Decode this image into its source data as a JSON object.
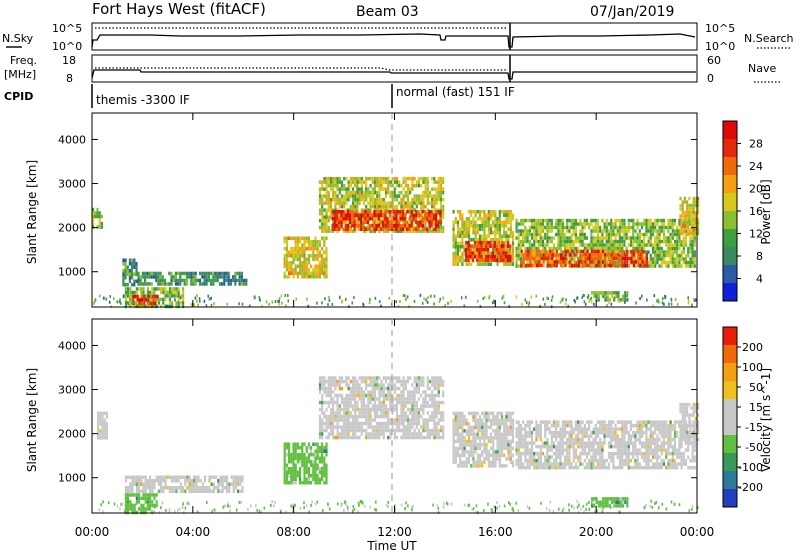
{
  "header": {
    "station": "Fort Hays West (fitACF)",
    "beam": "Beam 03",
    "date": "07/Jan/2019"
  },
  "noise_panel": {
    "left_label": "N.Sky",
    "right_label": "N.Search",
    "left_ticks": [
      "10^5",
      "10^0"
    ],
    "right_ticks": [
      "10^5",
      "10^0"
    ]
  },
  "freq_panel": {
    "left_label_1": "Freq.",
    "left_label_2": "[MHz]",
    "right_label": "Nave",
    "left_ticks": [
      "18",
      "8"
    ],
    "right_ticks": [
      "60",
      "0"
    ]
  },
  "cpid": {
    "label": "CPID",
    "segments": [
      {
        "start_hour": 0.0,
        "text": "themis -3300 IF"
      },
      {
        "start_hour": 12.0,
        "text": "normal (fast) 151 IF"
      }
    ]
  },
  "time_axis": {
    "label": "Time UT",
    "ticks": [
      {
        "hour": 0,
        "label": "00:00"
      },
      {
        "hour": 4,
        "label": "04:00"
      },
      {
        "hour": 8,
        "label": "08:00"
      },
      {
        "hour": 12,
        "label": "12:00"
      },
      {
        "hour": 16,
        "label": "16:00"
      },
      {
        "hour": 20,
        "label": "20:00"
      },
      {
        "hour": 24,
        "label": "00:00"
      }
    ]
  },
  "chart_data": [
    {
      "type": "heatmap",
      "name": "power",
      "ylabel": "Slant Range [km]",
      "ylim": [
        200,
        4600
      ],
      "yticks": [
        1000,
        2000,
        3000,
        4000
      ],
      "xlim": [
        0,
        24
      ],
      "colorbar": {
        "label": "Power [dB]",
        "min": 0,
        "max": 32,
        "ticks": [
          {
            "value": 4,
            "label": "4"
          },
          {
            "value": 8,
            "label": "8"
          },
          {
            "value": 12,
            "label": "12"
          },
          {
            "value": 16,
            "label": "16"
          },
          {
            "value": 20,
            "label": "20"
          },
          {
            "value": 24,
            "label": "24"
          },
          {
            "value": 28,
            "label": "28"
          }
        ],
        "colors": [
          "#1020d8",
          "#2a5aa8",
          "#3a8a60",
          "#3ca03c",
          "#8ac030",
          "#d8c818",
          "#f5a010",
          "#f06a08",
          "#e82808",
          "#e00808"
        ]
      },
      "regions": [
        {
          "t0": 0.0,
          "t1": 0.4,
          "r0": 2050,
          "r1": 2450,
          "value": 14
        },
        {
          "t0": 1.3,
          "t1": 3.6,
          "r0": 250,
          "r1": 650,
          "value": 14
        },
        {
          "t0": 1.6,
          "t1": 2.6,
          "r0": 260,
          "r1": 480,
          "value": 29
        },
        {
          "t0": 1.2,
          "t1": 1.8,
          "r0": 700,
          "r1": 1300,
          "value": 10
        },
        {
          "t0": 1.8,
          "t1": 6.1,
          "r0": 700,
          "r1": 1000,
          "value": 9
        },
        {
          "t0": 7.6,
          "t1": 9.3,
          "r0": 900,
          "r1": 1800,
          "value": 18
        },
        {
          "t0": 9.0,
          "t1": 13.9,
          "r0": 1900,
          "r1": 3150,
          "value": 16
        },
        {
          "t0": 9.5,
          "t1": 13.8,
          "r0": 2000,
          "r1": 2400,
          "value": 27
        },
        {
          "t0": 14.3,
          "t1": 16.7,
          "r0": 1200,
          "r1": 2400,
          "value": 16
        },
        {
          "t0": 14.8,
          "t1": 16.6,
          "r0": 1250,
          "r1": 1700,
          "value": 27
        },
        {
          "t0": 16.8,
          "t1": 23.9,
          "r0": 1150,
          "r1": 2200,
          "value": 14
        },
        {
          "t0": 17.0,
          "t1": 22.0,
          "r0": 1150,
          "r1": 1500,
          "value": 26
        },
        {
          "t0": 23.3,
          "t1": 24.0,
          "r0": 1900,
          "r1": 2700,
          "value": 18
        },
        {
          "t0": 19.8,
          "t1": 21.2,
          "r0": 350,
          "r1": 560,
          "value": 12
        }
      ]
    },
    {
      "type": "heatmap",
      "name": "velocity",
      "ylabel": "Slant Range [km]",
      "ylim": [
        200,
        4600
      ],
      "yticks": [
        1000,
        2000,
        3000,
        4000
      ],
      "xlim": [
        0,
        24
      ],
      "colorbar": {
        "label": "Velocity [m s^-1]",
        "min": -250,
        "max": 250,
        "ticks": [
          {
            "label": "200"
          },
          {
            "label": "100"
          },
          {
            "label": "50"
          },
          {
            "label": "15"
          },
          {
            "label": "-15"
          },
          {
            "label": "-50"
          },
          {
            "label": "-100"
          },
          {
            "label": "-200"
          }
        ],
        "colors": [
          "#2040c0",
          "#2a7a9a",
          "#3a9a5a",
          "#60c040",
          "#c8c8c8",
          "#c8c8c8",
          "#f0c018",
          "#f5a010",
          "#f06a08",
          "#e81c08"
        ]
      },
      "regions": [
        {
          "t0": 0.2,
          "t1": 0.6,
          "r0": 1900,
          "r1": 2500,
          "value": 0
        },
        {
          "t0": 1.3,
          "t1": 6.0,
          "r0": 700,
          "r1": 1050,
          "value": 0
        },
        {
          "t0": 1.3,
          "t1": 2.6,
          "r0": 250,
          "r1": 650,
          "value": -70
        },
        {
          "t0": 7.6,
          "t1": 9.3,
          "r0": 900,
          "r1": 1800,
          "value": -70
        },
        {
          "t0": 9.0,
          "t1": 13.9,
          "r0": 1900,
          "r1": 3300,
          "value": 0
        },
        {
          "t0": 14.3,
          "t1": 16.7,
          "r0": 1300,
          "r1": 2500,
          "value": 0
        },
        {
          "t0": 16.8,
          "t1": 23.9,
          "r0": 1200,
          "r1": 2300,
          "value": 0
        },
        {
          "t0": 23.3,
          "t1": 24.0,
          "r0": 1900,
          "r1": 2700,
          "value": 0
        },
        {
          "t0": 19.8,
          "t1": 21.2,
          "r0": 350,
          "r1": 560,
          "value": -70
        }
      ]
    }
  ]
}
